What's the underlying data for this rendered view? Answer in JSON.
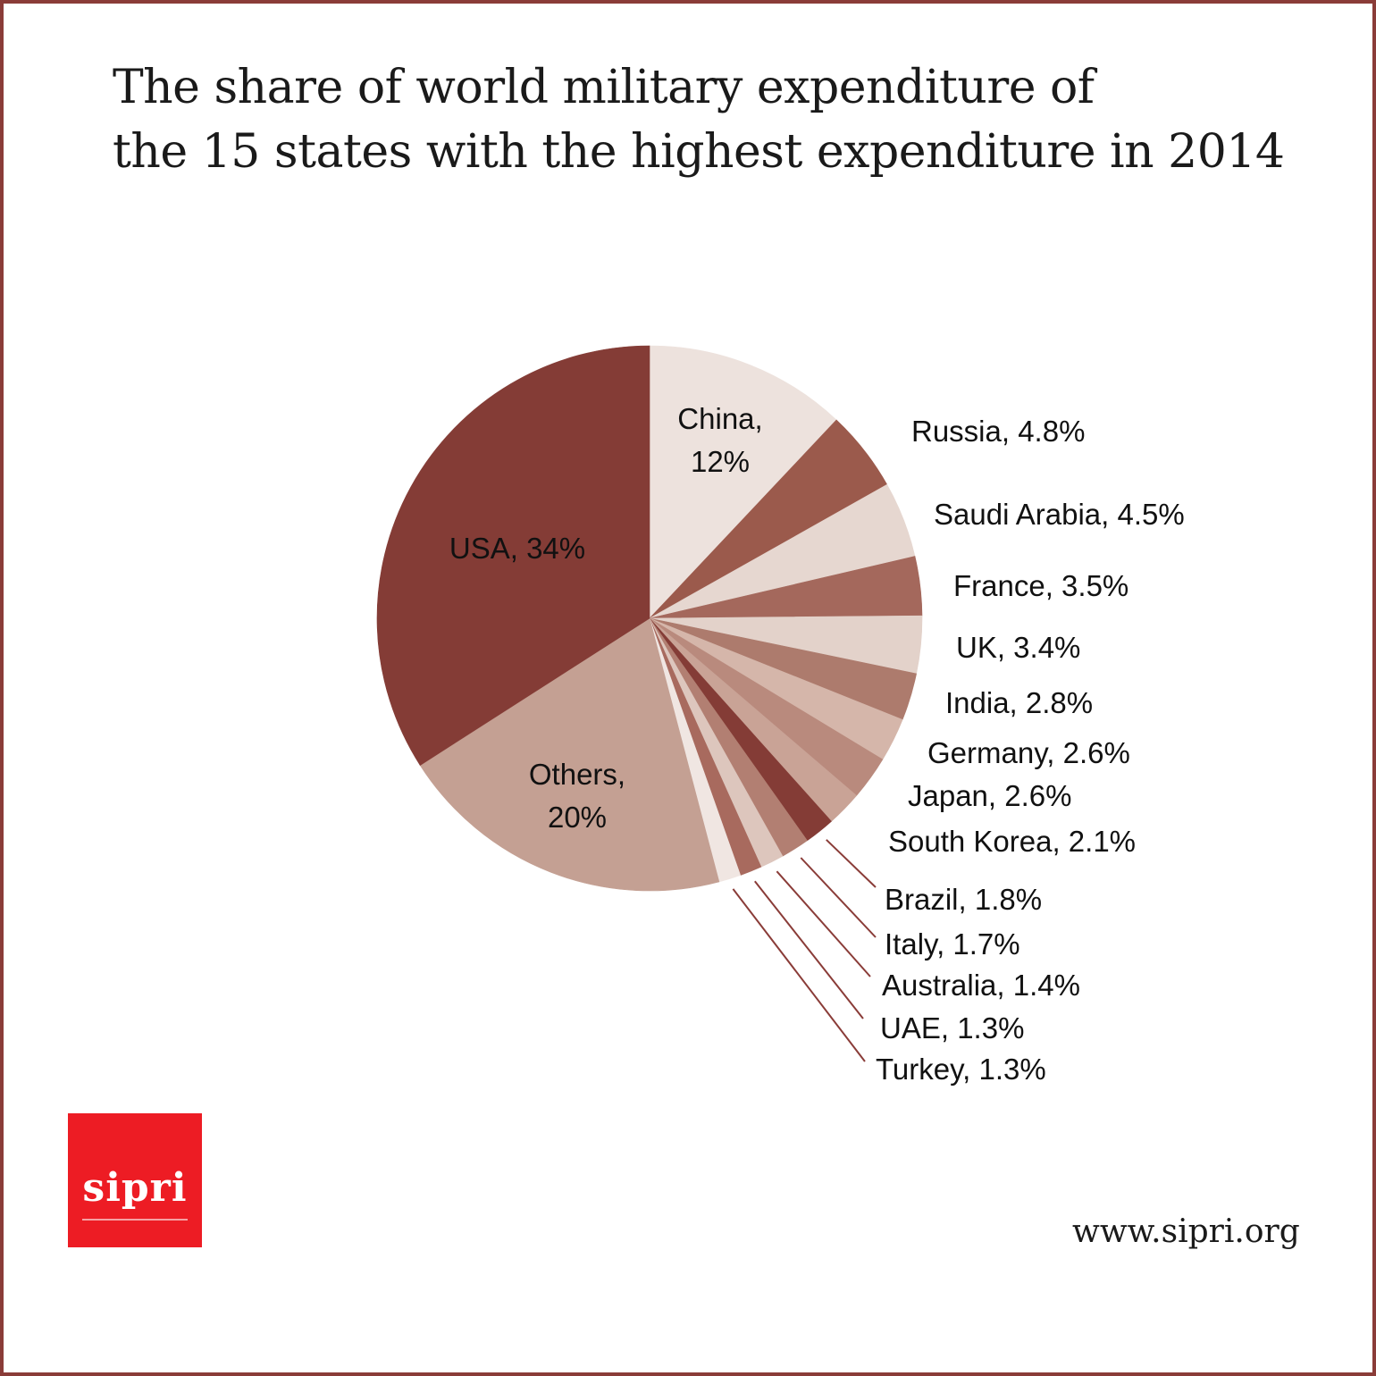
{
  "chart_data": {
    "type": "pie",
    "title": "The share of world military expenditure of the 15 states with the highest expenditure in 2014",
    "title_lines": [
      "The share of world military expenditure of",
      "the 15 states with the highest expenditure in 2014"
    ],
    "unit": "%",
    "start": "12 o'clock, clockwise",
    "slices": [
      {
        "name": "China",
        "value": 12,
        "label": "China,|12%",
        "color": "#ede2dd",
        "label_style": "inside"
      },
      {
        "name": "Russia",
        "value": 4.8,
        "label": "Russia, 4.8%",
        "color": "#9b5a4c",
        "label_style": "outside"
      },
      {
        "name": "Saudi Arabia",
        "value": 4.5,
        "label": "Saudi Arabia, 4.5%",
        "color": "#e6d7d0",
        "label_style": "outside"
      },
      {
        "name": "France",
        "value": 3.5,
        "label": "France, 3.5%",
        "color": "#a4685c",
        "label_style": "outside"
      },
      {
        "name": "UK",
        "value": 3.4,
        "label": "UK, 3.4%",
        "color": "#e3d2ca",
        "label_style": "outside"
      },
      {
        "name": "India",
        "value": 2.8,
        "label": "India, 2.8%",
        "color": "#ad7b6d",
        "label_style": "outside"
      },
      {
        "name": "Germany",
        "value": 2.6,
        "label": "Germany, 2.6%",
        "color": "#d5b6aa",
        "label_style": "outside"
      },
      {
        "name": "Japan",
        "value": 2.6,
        "label": "Japan, 2.6%",
        "color": "#b98a7d",
        "label_style": "outside"
      },
      {
        "name": "South Korea",
        "value": 2.1,
        "label": "South Korea, 2.1%",
        "color": "#c9a396",
        "label_style": "outside"
      },
      {
        "name": "Brazil",
        "value": 1.8,
        "label": "Brazil, 1.8%",
        "color": "#843c36",
        "label_style": "leader"
      },
      {
        "name": "Italy",
        "value": 1.7,
        "label": "Italy, 1.7%",
        "color": "#b27f72",
        "label_style": "leader"
      },
      {
        "name": "Australia",
        "value": 1.4,
        "label": "Australia, 1.4%",
        "color": "#ddc6bd",
        "label_style": "leader"
      },
      {
        "name": "UAE",
        "value": 1.3,
        "label": "UAE, 1.3%",
        "color": "#a86a5e",
        "label_style": "leader"
      },
      {
        "name": "Turkey",
        "value": 1.3,
        "label": "Turkey, 1.3%",
        "color": "#f0e6e2",
        "label_style": "leader"
      },
      {
        "name": "Others",
        "value": 20,
        "label": "Others,|20%",
        "color": "#c4a093",
        "label_style": "inside"
      },
      {
        "name": "USA",
        "value": 34,
        "label": "USA, 34%",
        "color": "#843c36",
        "label_style": "inside"
      }
    ],
    "leader_line_color": "#8a3c38",
    "legend": "none (direct labels)"
  },
  "branding": {
    "logo_text": "sipri",
    "logo_color": "#ed1c24",
    "url": "www.sipri.org"
  },
  "frame_color": "#8a3c38"
}
